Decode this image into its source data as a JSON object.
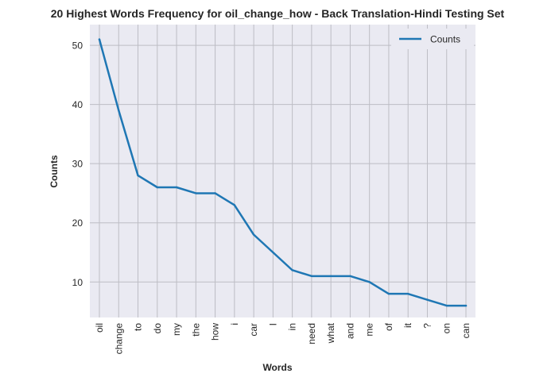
{
  "chart_data": {
    "type": "line",
    "title": "20 Highest Words Frequency for oil_change_how - Back Translation-Hindi Testing Set",
    "xlabel": "Words",
    "ylabel": "Counts",
    "categories": [
      "oil",
      "change",
      "to",
      "do",
      "my",
      "the",
      "how",
      "i",
      "car",
      "I",
      "in",
      "need",
      "what",
      "and",
      "me",
      "of",
      "it",
      "?",
      "on",
      "can"
    ],
    "series": [
      {
        "name": "Counts",
        "values": [
          51,
          39,
          28,
          26,
          26,
          25,
          25,
          23,
          18,
          15,
          12,
          11,
          11,
          11,
          10,
          8,
          8,
          7,
          6,
          6
        ]
      }
    ],
    "ylim": [
      4,
      53.5
    ],
    "yticks": [
      10,
      20,
      30,
      40,
      50
    ],
    "grid": true,
    "legend_position": "top-right",
    "colors": {
      "line": "#1f77b4",
      "plot_background": "#eaeaf2",
      "grid": "#bdbdc4"
    }
  }
}
